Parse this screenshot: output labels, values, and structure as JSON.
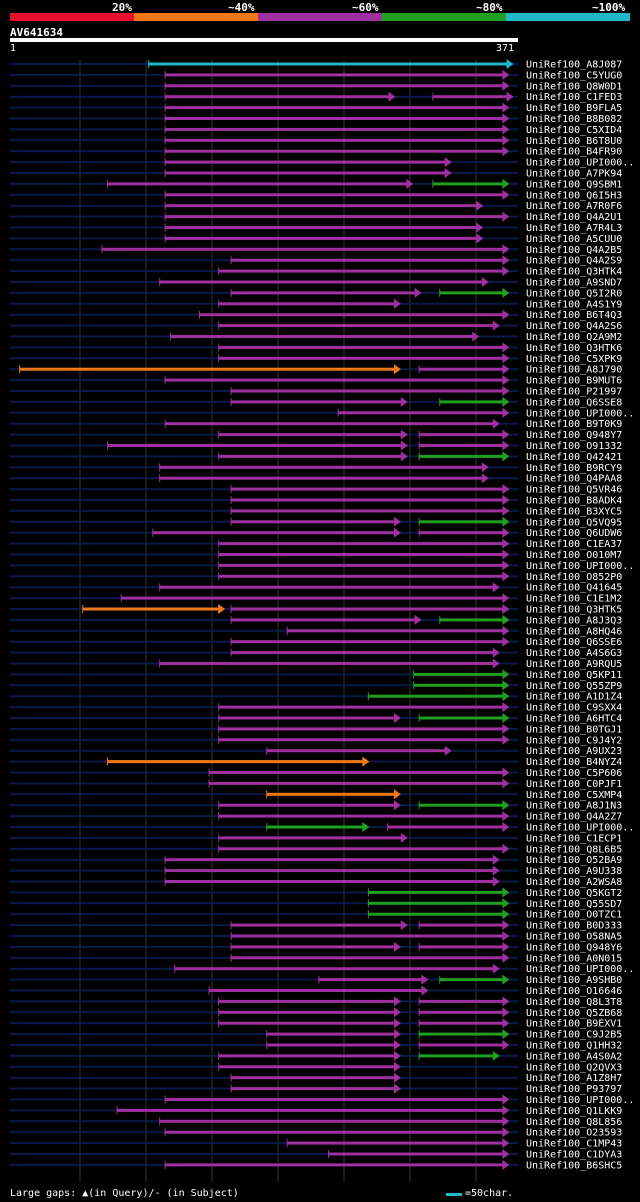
{
  "legend": {
    "ticks": [
      "20%",
      "~40%",
      "~60%",
      "~80%",
      "~100%"
    ],
    "colors": [
      "#e8102e",
      "#f07818",
      "#a030a0",
      "#20a020",
      "#20b8c8"
    ]
  },
  "query": {
    "name": "AV641634",
    "start": "1",
    "end": "371"
  },
  "footer": {
    "text": "Large gaps: ▲(in Query)/- (in Subject)",
    "scale_text": "=50char."
  },
  "chart_data": {
    "type": "alignment",
    "query_length": 371,
    "colors": {
      "gt80": "#20b8c8",
      "60-80": "#20a020",
      "40-60": "#a030a0",
      "20-40": "#f07818",
      "lt20": "#e8102e"
    },
    "hits": [
      {
        "name": "UniRef100_A8J087",
        "segments": [
          [
            102,
            367,
            "gt80"
          ]
        ]
      },
      {
        "name": "UniRef100_C5YUG0",
        "segments": [
          [
            114,
            364,
            "40-60"
          ]
        ]
      },
      {
        "name": "UniRef100_Q8W0D1",
        "segments": [
          [
            114,
            364,
            "40-60"
          ]
        ]
      },
      {
        "name": "UniRef100_C1FED3",
        "segments": [
          [
            114,
            281,
            "40-60"
          ],
          [
            309,
            367,
            "40-60"
          ]
        ]
      },
      {
        "name": "UniRef100_B9FLA5",
        "segments": [
          [
            114,
            364,
            "40-60"
          ]
        ]
      },
      {
        "name": "UniRef100_B8B082",
        "segments": [
          [
            114,
            364,
            "40-60"
          ]
        ]
      },
      {
        "name": "UniRef100_C5XID4",
        "segments": [
          [
            114,
            364,
            "40-60"
          ]
        ]
      },
      {
        "name": "UniRef100_B6T8U0",
        "segments": [
          [
            114,
            364,
            "40-60"
          ]
        ]
      },
      {
        "name": "UniRef100_B4FR90",
        "segments": [
          [
            114,
            364,
            "40-60"
          ]
        ]
      },
      {
        "name": "UniRef100_UPI000..",
        "segments": [
          [
            114,
            322,
            "40-60"
          ]
        ]
      },
      {
        "name": "UniRef100_A7PK94",
        "segments": [
          [
            114,
            322,
            "40-60"
          ]
        ]
      },
      {
        "name": "UniRef100_Q9SBM1",
        "segments": [
          [
            72,
            294,
            "40-60"
          ],
          [
            309,
            364,
            "60-80"
          ]
        ]
      },
      {
        "name": "UniRef100_Q6I5H3",
        "segments": [
          [
            114,
            364,
            "40-60"
          ]
        ]
      },
      {
        "name": "UniRef100_A7R0F6",
        "segments": [
          [
            114,
            345,
            "40-60"
          ]
        ]
      },
      {
        "name": "UniRef100_Q4A2U1",
        "segments": [
          [
            114,
            364,
            "40-60"
          ]
        ]
      },
      {
        "name": "UniRef100_A7R4L3",
        "segments": [
          [
            114,
            345,
            "40-60"
          ]
        ]
      },
      {
        "name": "UniRef100_A5CUU0",
        "segments": [
          [
            114,
            345,
            "40-60"
          ]
        ]
      },
      {
        "name": "UniRef100_Q4A2B5",
        "segments": [
          [
            68,
            364,
            "40-60"
          ]
        ]
      },
      {
        "name": "UniRef100_Q4A2S9",
        "segments": [
          [
            162,
            364,
            "40-60"
          ]
        ]
      },
      {
        "name": "UniRef100_Q3HTK4",
        "segments": [
          [
            153,
            364,
            "40-60"
          ]
        ]
      },
      {
        "name": "UniRef100_A9SND7",
        "segments": [
          [
            110,
            349,
            "40-60"
          ]
        ]
      },
      {
        "name": "UniRef100_Q5I2R0",
        "segments": [
          [
            162,
            300,
            "40-60"
          ],
          [
            314,
            364,
            "60-80"
          ]
        ]
      },
      {
        "name": "UniRef100_A4S1Y9",
        "segments": [
          [
            153,
            285,
            "40-60"
          ]
        ]
      },
      {
        "name": "UniRef100_B6T4Q3",
        "segments": [
          [
            139,
            364,
            "40-60"
          ]
        ]
      },
      {
        "name": "UniRef100_Q4A2S6",
        "segments": [
          [
            153,
            357,
            "40-60"
          ]
        ]
      },
      {
        "name": "UniRef100_Q2A9M2",
        "segments": [
          [
            118,
            342,
            "40-60"
          ]
        ]
      },
      {
        "name": "UniRef100_Q3HTK6",
        "segments": [
          [
            153,
            364,
            "40-60"
          ]
        ]
      },
      {
        "name": "UniRef100_C5XPK9",
        "segments": [
          [
            153,
            364,
            "40-60"
          ]
        ]
      },
      {
        "name": "UniRef100_A8J790",
        "segments": [
          [
            8,
            285,
            "20-40"
          ],
          [
            299,
            364,
            "40-60"
          ]
        ]
      },
      {
        "name": "UniRef100_B9MUT6",
        "segments": [
          [
            114,
            364,
            "40-60"
          ]
        ]
      },
      {
        "name": "UniRef100_P21997",
        "segments": [
          [
            162,
            364,
            "40-60"
          ]
        ]
      },
      {
        "name": "UniRef100_Q6SSE8",
        "segments": [
          [
            162,
            290,
            "40-60"
          ],
          [
            314,
            364,
            "60-80"
          ]
        ]
      },
      {
        "name": "UniRef100_UPI000..",
        "segments": [
          [
            240,
            364,
            "40-60"
          ]
        ]
      },
      {
        "name": "UniRef100_B9T0K9",
        "segments": [
          [
            114,
            357,
            "40-60"
          ]
        ]
      },
      {
        "name": "UniRef100_Q948Y7",
        "segments": [
          [
            153,
            290,
            "40-60"
          ],
          [
            299,
            364,
            "40-60"
          ]
        ]
      },
      {
        "name": "UniRef100_O91332",
        "segments": [
          [
            72,
            290,
            "40-60"
          ],
          [
            299,
            364,
            "40-60"
          ]
        ]
      },
      {
        "name": "UniRef100_Q42421",
        "segments": [
          [
            153,
            290,
            "40-60"
          ],
          [
            299,
            364,
            "60-80"
          ]
        ]
      },
      {
        "name": "UniRef100_B9RCY9",
        "segments": [
          [
            110,
            349,
            "40-60"
          ]
        ]
      },
      {
        "name": "UniRef100_Q4PAA8",
        "segments": [
          [
            110,
            349,
            "40-60"
          ]
        ]
      },
      {
        "name": "UniRef100_Q5VR46",
        "segments": [
          [
            162,
            364,
            "40-60"
          ]
        ]
      },
      {
        "name": "UniRef100_B8ADK4",
        "segments": [
          [
            162,
            364,
            "40-60"
          ]
        ]
      },
      {
        "name": "UniRef100_B3XYC5",
        "segments": [
          [
            162,
            364,
            "40-60"
          ]
        ]
      },
      {
        "name": "UniRef100_Q5VQ95",
        "segments": [
          [
            162,
            285,
            "40-60"
          ],
          [
            299,
            364,
            "60-80"
          ]
        ]
      },
      {
        "name": "UniRef100_Q6UDW6",
        "segments": [
          [
            105,
            285,
            "40-60"
          ],
          [
            299,
            364,
            "40-60"
          ]
        ]
      },
      {
        "name": "UniRef100_C1EA37",
        "segments": [
          [
            153,
            364,
            "40-60"
          ]
        ]
      },
      {
        "name": "UniRef100_O010M7",
        "segments": [
          [
            153,
            364,
            "40-60"
          ]
        ]
      },
      {
        "name": "UniRef100_UPI000..",
        "segments": [
          [
            153,
            364,
            "40-60"
          ]
        ]
      },
      {
        "name": "UniRef100_O852P0",
        "segments": [
          [
            153,
            364,
            "40-60"
          ]
        ]
      },
      {
        "name": "UniRef100_Q41645",
        "segments": [
          [
            110,
            357,
            "40-60"
          ]
        ]
      },
      {
        "name": "UniRef100_C1E1M2",
        "segments": [
          [
            82,
            364,
            "40-60"
          ]
        ]
      },
      {
        "name": "UniRef100_Q3HTK5",
        "segments": [
          [
            54,
            157,
            "20-40"
          ],
          [
            162,
            364,
            "40-60"
          ]
        ]
      },
      {
        "name": "UniRef100_A8J3Q3",
        "segments": [
          [
            162,
            300,
            "40-60"
          ],
          [
            314,
            364,
            "60-80"
          ]
        ]
      },
      {
        "name": "UniRef100_A8HQ46",
        "segments": [
          [
            203,
            364,
            "40-60"
          ]
        ]
      },
      {
        "name": "UniRef100_Q6SSE6",
        "segments": [
          [
            162,
            364,
            "40-60"
          ]
        ]
      },
      {
        "name": "UniRef100_A4S6G3",
        "segments": [
          [
            162,
            357,
            "40-60"
          ]
        ]
      },
      {
        "name": "UniRef100_A9RQU5",
        "segments": [
          [
            110,
            357,
            "40-60"
          ]
        ]
      },
      {
        "name": "UniRef100_Q5KP11",
        "segments": [
          [
            295,
            364,
            "60-80"
          ]
        ]
      },
      {
        "name": "UniRef100_Q55ZP9",
        "segments": [
          [
            295,
            364,
            "60-80"
          ]
        ]
      },
      {
        "name": "UniRef100_A1D1Z4",
        "segments": [
          [
            262,
            364,
            "60-80"
          ]
        ]
      },
      {
        "name": "UniRef100_C9SXX4",
        "segments": [
          [
            153,
            364,
            "40-60"
          ]
        ]
      },
      {
        "name": "UniRef100_A6HTC4",
        "segments": [
          [
            153,
            285,
            "40-60"
          ],
          [
            299,
            364,
            "60-80"
          ]
        ]
      },
      {
        "name": "UniRef100_B0TGJ1",
        "segments": [
          [
            153,
            364,
            "40-60"
          ]
        ]
      },
      {
        "name": "UniRef100_C9J4Y2",
        "segments": [
          [
            153,
            364,
            "40-60"
          ]
        ]
      },
      {
        "name": "UniRef100_A9UX23",
        "segments": [
          [
            188,
            322,
            "40-60"
          ]
        ]
      },
      {
        "name": "UniRef100_B4NYZ4",
        "segments": [
          [
            72,
            262,
            "20-40"
          ]
        ]
      },
      {
        "name": "UniRef100_C5P606",
        "segments": [
          [
            146,
            364,
            "40-60"
          ]
        ]
      },
      {
        "name": "UniRef100_C0PJF1",
        "segments": [
          [
            146,
            364,
            "40-60"
          ]
        ]
      },
      {
        "name": "UniRef100_C5XMP4",
        "segments": [
          [
            188,
            285,
            "20-40"
          ]
        ]
      },
      {
        "name": "UniRef100_A8J1N3",
        "segments": [
          [
            153,
            285,
            "40-60"
          ],
          [
            299,
            364,
            "60-80"
          ]
        ]
      },
      {
        "name": "UniRef100_Q4A2Z7",
        "segments": [
          [
            153,
            364,
            "40-60"
          ]
        ]
      },
      {
        "name": "UniRef100_UPI000..",
        "segments": [
          [
            188,
            262,
            "60-80"
          ],
          [
            276,
            364,
            "40-60"
          ]
        ]
      },
      {
        "name": "UniRef100_C1ECP1",
        "segments": [
          [
            153,
            290,
            "40-60"
          ]
        ]
      },
      {
        "name": "UniRef100_Q8L6B5",
        "segments": [
          [
            153,
            364,
            "40-60"
          ]
        ]
      },
      {
        "name": "UniRef100_O52BA9",
        "segments": [
          [
            114,
            357,
            "40-60"
          ]
        ]
      },
      {
        "name": "UniRef100_A9U338",
        "segments": [
          [
            114,
            357,
            "40-60"
          ]
        ]
      },
      {
        "name": "UniRef100_A2WSA8",
        "segments": [
          [
            114,
            357,
            "40-60"
          ]
        ]
      },
      {
        "name": "UniRef100_Q5KGT2",
        "segments": [
          [
            262,
            364,
            "60-80"
          ]
        ]
      },
      {
        "name": "UniRef100_Q55SD7",
        "segments": [
          [
            262,
            364,
            "60-80"
          ]
        ]
      },
      {
        "name": "UniRef100_O0TZC1",
        "segments": [
          [
            262,
            364,
            "60-80"
          ]
        ]
      },
      {
        "name": "UniRef100_B0D333",
        "segments": [
          [
            162,
            290,
            "40-60"
          ],
          [
            299,
            364,
            "40-60"
          ]
        ]
      },
      {
        "name": "UniRef100_O58NA5",
        "segments": [
          [
            162,
            364,
            "40-60"
          ]
        ]
      },
      {
        "name": "UniRef100_Q948Y6",
        "segments": [
          [
            162,
            285,
            "40-60"
          ],
          [
            299,
            364,
            "40-60"
          ]
        ]
      },
      {
        "name": "UniRef100_A0N015",
        "segments": [
          [
            162,
            364,
            "40-60"
          ]
        ]
      },
      {
        "name": "UniRef100_UPI000..",
        "segments": [
          [
            121,
            357,
            "40-60"
          ]
        ]
      },
      {
        "name": "UniRef100_A9SHB0",
        "segments": [
          [
            226,
            305,
            "40-60"
          ],
          [
            314,
            364,
            "60-80"
          ]
        ]
      },
      {
        "name": "UniRef100_O16646",
        "segments": [
          [
            146,
            305,
            "40-60"
          ]
        ]
      },
      {
        "name": "UniRef100_Q8L3T8",
        "segments": [
          [
            153,
            285,
            "40-60"
          ],
          [
            299,
            364,
            "40-60"
          ]
        ]
      },
      {
        "name": "UniRef100_Q5ZB68",
        "segments": [
          [
            153,
            285,
            "40-60"
          ],
          [
            299,
            364,
            "40-60"
          ]
        ]
      },
      {
        "name": "UniRef100_B9EXV1",
        "segments": [
          [
            153,
            285,
            "40-60"
          ],
          [
            299,
            364,
            "40-60"
          ]
        ]
      },
      {
        "name": "UniRef100_C9J2B5",
        "segments": [
          [
            188,
            285,
            "40-60"
          ],
          [
            299,
            364,
            "60-80"
          ]
        ]
      },
      {
        "name": "UniRef100_Q1HH32",
        "segments": [
          [
            188,
            285,
            "40-60"
          ],
          [
            299,
            364,
            "40-60"
          ]
        ]
      },
      {
        "name": "UniRef100_A4S0A2",
        "segments": [
          [
            153,
            285,
            "40-60"
          ],
          [
            299,
            357,
            "60-80"
          ]
        ]
      },
      {
        "name": "UniRef100_Q2QVX3",
        "segments": [
          [
            153,
            285,
            "40-60"
          ]
        ]
      },
      {
        "name": "UniRef100_A1Z8H7",
        "segments": [
          [
            162,
            285,
            "40-60"
          ]
        ]
      },
      {
        "name": "UniRef100_P93797",
        "segments": [
          [
            162,
            285,
            "40-60"
          ]
        ]
      },
      {
        "name": "UniRef100_UPI000..",
        "segments": [
          [
            114,
            364,
            "40-60"
          ]
        ]
      },
      {
        "name": "UniRef100_Q1LKK9",
        "segments": [
          [
            79,
            364,
            "40-60"
          ]
        ]
      },
      {
        "name": "UniRef100_Q8L856",
        "segments": [
          [
            110,
            364,
            "40-60"
          ]
        ]
      },
      {
        "name": "UniRef100_O23593",
        "segments": [
          [
            114,
            364,
            "40-60"
          ]
        ]
      },
      {
        "name": "UniRef100_C1MP43",
        "segments": [
          [
            203,
            364,
            "40-60"
          ]
        ]
      },
      {
        "name": "UniRef100_C1DYA3",
        "segments": [
          [
            233,
            364,
            "40-60"
          ]
        ]
      },
      {
        "name": "UniRef100_B6SHC5",
        "segments": [
          [
            114,
            364,
            "40-60"
          ]
        ]
      }
    ]
  }
}
